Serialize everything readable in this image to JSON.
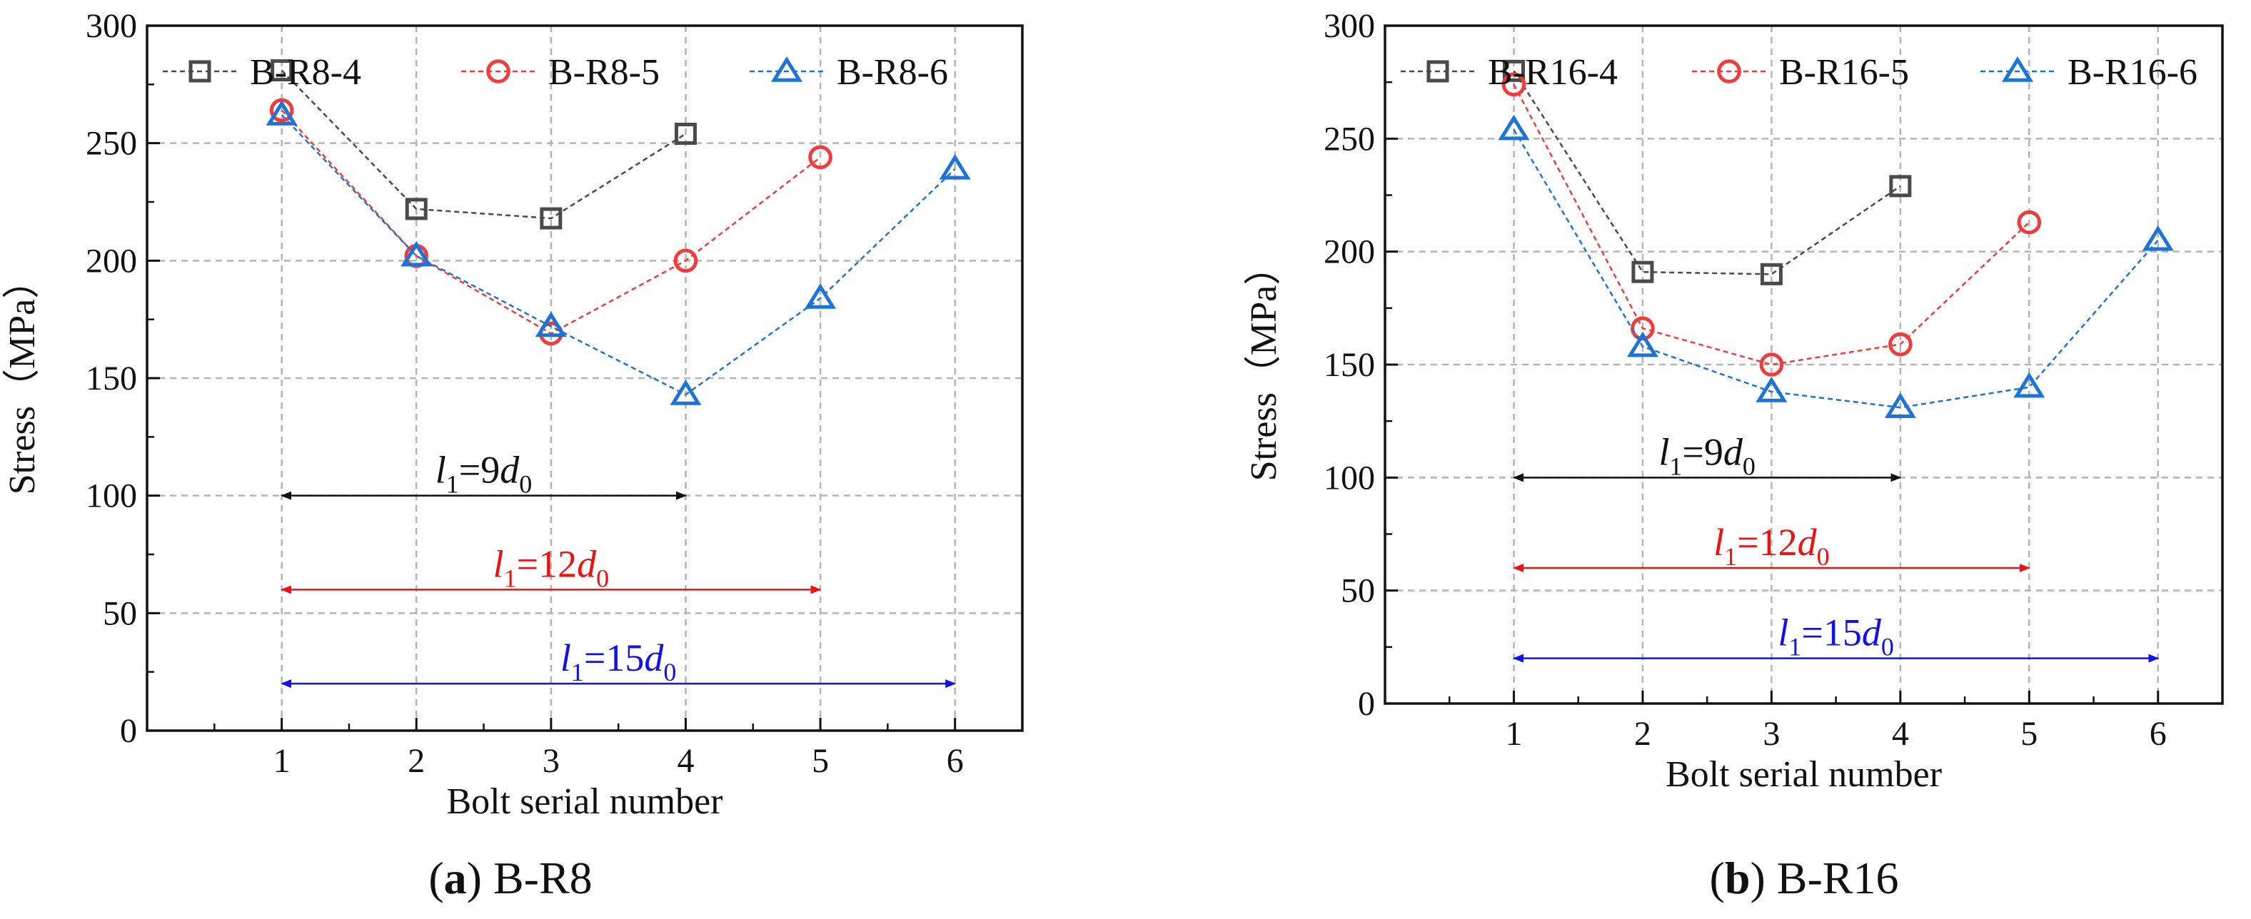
{
  "chart_data": [
    {
      "type": "line",
      "panel": "a",
      "caption_letter": "(a)",
      "caption_text": " B-R8",
      "xlabel": "Bolt serial number",
      "ylabel": "Stress（MPa）",
      "xlim": [
        0.0,
        6.5
      ],
      "ylim": [
        0,
        300
      ],
      "xticks": [
        1,
        2,
        3,
        4,
        5,
        6
      ],
      "yticks": [
        0,
        50,
        100,
        150,
        200,
        250,
        300
      ],
      "grid": true,
      "legend_position": "top",
      "series": [
        {
          "name": "B-R8-4",
          "marker": "square",
          "color": "#4a4a4a",
          "x": [
            1,
            2,
            3,
            4
          ],
          "values": [
            281,
            222,
            218,
            254
          ]
        },
        {
          "name": "B-R8-5",
          "marker": "circle",
          "color": "#f23b3b",
          "x": [
            1,
            2,
            3,
            4,
            5
          ],
          "values": [
            264,
            202,
            169,
            200,
            244
          ]
        },
        {
          "name": "B-R8-6",
          "marker": "triangle",
          "color": "#1c74d9",
          "x": [
            1,
            2,
            3,
            4,
            5,
            6
          ],
          "values": [
            262,
            202,
            172,
            143,
            184,
            239
          ]
        }
      ],
      "annotations": [
        {
          "sub": "1",
          "coef": "9",
          "sub0": "0",
          "color": "#111111",
          "x_from": 1,
          "x_to": 4,
          "y": 100
        },
        {
          "sub": "1",
          "coef": "12",
          "sub0": "0",
          "color": "#ee1111",
          "x_from": 1,
          "x_to": 5,
          "y": 60
        },
        {
          "sub": "1",
          "coef": "15",
          "sub0": "0",
          "color": "#1111ee",
          "x_from": 1,
          "x_to": 6,
          "y": 20
        }
      ]
    },
    {
      "type": "line",
      "panel": "b",
      "caption_letter": "(b)",
      "caption_text": " B-R16",
      "xlabel": "Bolt serial number",
      "ylabel": "Stress（MPa）",
      "xlim": [
        0.0,
        6.5
      ],
      "ylim": [
        0,
        300
      ],
      "xticks": [
        1,
        2,
        3,
        4,
        5,
        6
      ],
      "yticks": [
        0,
        50,
        100,
        150,
        200,
        250,
        300
      ],
      "grid": true,
      "legend_position": "top",
      "series": [
        {
          "name": "B-R16-4",
          "marker": "square",
          "color": "#4a4a4a",
          "x": [
            1,
            2,
            3,
            4
          ],
          "values": [
            280,
            191,
            190,
            229
          ]
        },
        {
          "name": "B-R16-5",
          "marker": "circle",
          "color": "#f23b3b",
          "x": [
            1,
            2,
            3,
            4,
            5
          ],
          "values": [
            274,
            166,
            150,
            159,
            213
          ]
        },
        {
          "name": "B-R16-6",
          "marker": "triangle",
          "color": "#1c74d9",
          "x": [
            1,
            2,
            3,
            4,
            5,
            6
          ],
          "values": [
            254,
            158,
            138,
            131,
            140,
            205
          ]
        }
      ],
      "annotations": [
        {
          "sub": "1",
          "coef": "9",
          "sub0": "0",
          "color": "#111111",
          "x_from": 1,
          "x_to": 4,
          "y": 100
        },
        {
          "sub": "1",
          "coef": "12",
          "sub0": "0",
          "color": "#ee1111",
          "x_from": 1,
          "x_to": 5,
          "y": 60
        },
        {
          "sub": "1",
          "coef": "15",
          "sub0": "0",
          "color": "#1111ee",
          "x_from": 1,
          "x_to": 6,
          "y": 20
        }
      ]
    }
  ]
}
